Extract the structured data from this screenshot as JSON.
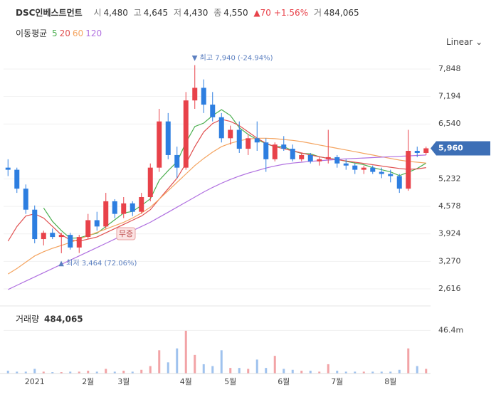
{
  "header": {
    "name": "DSC인베스트먼트",
    "quote": [
      {
        "label": "시",
        "value": "4,480"
      },
      {
        "label": "고",
        "value": "4,645"
      },
      {
        "label": "저",
        "value": "4,430"
      },
      {
        "label": "종",
        "value": "4,550"
      }
    ],
    "change": "▲70",
    "change_pct": "+1.56%",
    "volume_label": "거",
    "volume": "484,065",
    "ma_title": "이동평균",
    "scale_menu": "Linear"
  },
  "chart_data": [
    {
      "type": "candlestick",
      "categories": [
        null,
        null,
        null,
        "2021",
        null,
        null,
        null,
        null,
        null,
        "2월",
        null,
        null,
        null,
        "3월",
        null,
        null,
        null,
        null,
        null,
        null,
        "4월",
        null,
        null,
        null,
        null,
        "5월",
        null,
        null,
        null,
        null,
        null,
        "6월",
        null,
        null,
        null,
        null,
        null,
        "7월",
        null,
        null,
        null,
        null,
        null,
        "8월",
        null,
        null,
        null,
        null
      ],
      "open": [
        5500,
        5450,
        5000,
        4500,
        3800,
        3950,
        3850,
        3900,
        3600,
        3850,
        4250,
        4100,
        4700,
        4400,
        4650,
        4450,
        4800,
        5500,
        6600,
        5800,
        5500,
        7100,
        7400,
        7000,
        6700,
        6200,
        6400,
        5950,
        6200,
        6100,
        5700,
        6050,
        5950,
        5700,
        5800,
        5650,
        5700,
        5750,
        5600,
        5550,
        5450,
        5500,
        5400,
        5350,
        5300,
        5000,
        5900,
        5850
      ],
      "high": [
        5700,
        5500,
        5100,
        4600,
        4000,
        4050,
        3950,
        3950,
        3900,
        4400,
        4450,
        4900,
        4750,
        4800,
        4700,
        4900,
        5600,
        6900,
        6800,
        6000,
        7300,
        7940,
        7600,
        7300,
        6800,
        6500,
        6600,
        6300,
        6600,
        6200,
        6100,
        6250,
        6050,
        5850,
        5850,
        5750,
        6400,
        5800,
        5700,
        5600,
        5550,
        5550,
        5500,
        5450,
        5350,
        6400,
        6000,
        6000
      ],
      "low": [
        5300,
        4900,
        4400,
        3700,
        3650,
        3800,
        3464,
        3550,
        3470,
        3800,
        4000,
        4050,
        4300,
        4300,
        4350,
        4400,
        4700,
        5400,
        5700,
        5250,
        5450,
        6900,
        6800,
        6600,
        6100,
        6050,
        5850,
        5800,
        5900,
        5400,
        5650,
        5900,
        5650,
        5650,
        5600,
        5550,
        5600,
        5500,
        5450,
        5350,
        5350,
        5350,
        5250,
        5150,
        4900,
        4950,
        5750,
        5800
      ],
      "close": [
        5450,
        5000,
        4500,
        3800,
        3950,
        3850,
        3900,
        3600,
        3850,
        4250,
        4100,
        4700,
        4400,
        4650,
        4450,
        4800,
        5500,
        6600,
        5800,
        5500,
        7100,
        7400,
        7000,
        6700,
        6200,
        6400,
        5950,
        6200,
        6100,
        5700,
        6050,
        5950,
        5700,
        5800,
        5650,
        5700,
        5750,
        5600,
        5550,
        5450,
        5500,
        5400,
        5350,
        5300,
        5000,
        5900,
        5850,
        5960
      ],
      "up_color": "#e8424a",
      "down_color": "#2d7ee0",
      "series": [
        {
          "name": "5",
          "color": "#4caf50",
          "values": [
            null,
            null,
            null,
            null,
            4540,
            4220,
            4000,
            3820,
            3830,
            3890,
            3940,
            4100,
            4260,
            4420,
            4460,
            4600,
            4760,
            5200,
            5430,
            5640,
            6100,
            6480,
            6560,
            6740,
            6880,
            6740,
            6450,
            6290,
            6170,
            6070,
            6000,
            6000,
            5900,
            5840,
            5830,
            5760,
            5720,
            5700,
            5650,
            5610,
            5570,
            5500,
            5450,
            5400,
            5310,
            5390,
            5480,
            5610
          ]
        },
        {
          "name": "20",
          "color": "#e05050",
          "values": [
            3750,
            4100,
            4350,
            4400,
            4300,
            4100,
            3900,
            3780,
            3750,
            3800,
            3850,
            3950,
            4050,
            4150,
            4250,
            4350,
            4500,
            4750,
            5000,
            5250,
            5600,
            6000,
            6350,
            6550,
            6650,
            6600,
            6500,
            6350,
            6200,
            6080,
            6000,
            5950,
            5900,
            5850,
            5800,
            5760,
            5720,
            5690,
            5660,
            5630,
            5600,
            5570,
            5540,
            5510,
            5480,
            5460,
            5470,
            5500
          ]
        },
        {
          "name": "60",
          "color": "#f4a460",
          "values": [
            2970,
            3100,
            3250,
            3400,
            3500,
            3580,
            3650,
            3720,
            3800,
            3880,
            3960,
            4040,
            4120,
            4200,
            4300,
            4420,
            4560,
            4750,
            4950,
            5150,
            5350,
            5550,
            5720,
            5870,
            6000,
            6080,
            6140,
            6180,
            6200,
            6200,
            6190,
            6170,
            6150,
            6120,
            6080,
            6040,
            6000,
            5960,
            5920,
            5880,
            5840,
            5800,
            5760,
            5720,
            5680,
            5650,
            5630,
            5610
          ]
        },
        {
          "name": "120",
          "color": "#b070e0",
          "values": [
            2600,
            2700,
            2800,
            2900,
            3000,
            3100,
            3200,
            3300,
            3400,
            3500,
            3600,
            3700,
            3800,
            3900,
            4000,
            4100,
            4200,
            4320,
            4440,
            4560,
            4680,
            4800,
            4920,
            5030,
            5130,
            5220,
            5300,
            5370,
            5430,
            5490,
            5540,
            5580,
            5610,
            5630,
            5650,
            5665,
            5680,
            5695,
            5710,
            5720,
            5730,
            5740,
            5750,
            5760,
            5770,
            5780,
            5790,
            5800
          ]
        }
      ],
      "ylim": [
        2294,
        8220
      ],
      "yticks": [
        {
          "value": 2616,
          "label": "2,616"
        },
        {
          "value": 3270,
          "label": "3,270"
        },
        {
          "value": 3924,
          "label": "3,924"
        },
        {
          "value": 4578,
          "label": "4,578"
        },
        {
          "value": 5232,
          "label": "5,232"
        },
        {
          "value": 6540,
          "label": "6,540"
        },
        {
          "value": 7194,
          "label": "7,194"
        },
        {
          "value": 7848,
          "label": "7,848"
        }
      ],
      "grid": true,
      "current_price": {
        "value": 5960,
        "label": "5,960"
      },
      "high_annotation": "▼ 최고 7,940 (-24.94%)",
      "low_annotation": "▲ 최저 3,464 (72.06%)",
      "event_badge": "무증"
    },
    {
      "type": "bar",
      "title": "거래량",
      "title_value": "484,065",
      "values": [
        3000000,
        2000000,
        2000000,
        5000000,
        2000000,
        1500000,
        1500000,
        2000000,
        2000000,
        3000000,
        2000000,
        5000000,
        2000000,
        3000000,
        2000000,
        4000000,
        8000000,
        25000000,
        12000000,
        27000000,
        46000000,
        20000000,
        10000000,
        8000000,
        25000000,
        6000000,
        6000000,
        5000000,
        15000000,
        6000000,
        19000000,
        5000000,
        4000000,
        3000000,
        3000000,
        2000000,
        10000000,
        3000000,
        2000000,
        2000000,
        2000000,
        2000000,
        2000000,
        2000000,
        4000000,
        27000000,
        8000000,
        5000000
      ],
      "up_color": "#f2a3a6",
      "down_color": "#9fc2ee",
      "ylim": [
        0,
        65000000
      ],
      "yticks": [
        {
          "value": 46400000,
          "label": "46.4m"
        }
      ]
    }
  ]
}
